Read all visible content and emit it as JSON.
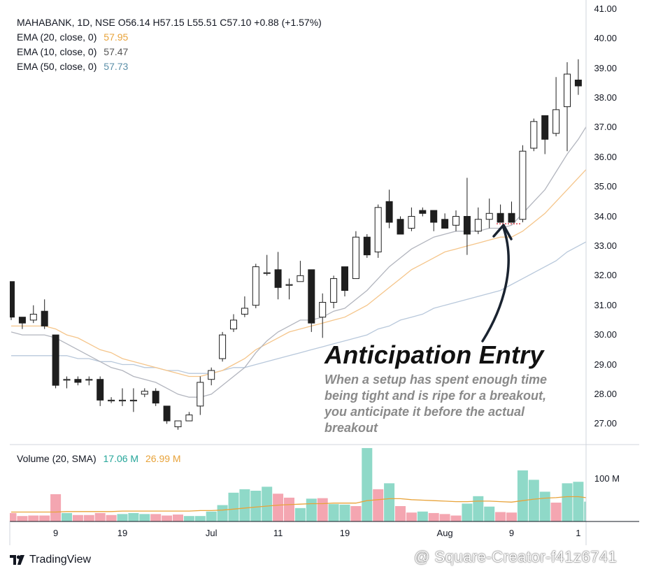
{
  "header": {
    "symbol_line": "MAHABANK, 1D, NSE  O56.14  H57.15  L55.51  C57.10  +0.88 (+1.57%)",
    "ema20_label": "EMA (20, close, 0)",
    "ema20_value": "57.95",
    "ema10_label": "EMA (10, close, 0)",
    "ema10_value": "57.47",
    "ema50_label": "EMA (50, close, 0)",
    "ema50_value": "57.73",
    "volume_label": "Volume (20, SMA)",
    "volume_value": "17.06 M",
    "volume_sma_value": "26.99 M",
    "volume_axis_tick": "100 M"
  },
  "colors": {
    "up": "#ffffff",
    "down": "#1e1e1e",
    "ema10": "#b2b5be",
    "ema20": "#f5c58a",
    "ema50": "#b8c8db",
    "vol_up": "#8fd9c8",
    "vol_down": "#f4a6b1",
    "vol_sma": "#e8a33a"
  },
  "annotation": {
    "title": "Anticipation Entry",
    "description": "When a setup has spent enough time being tight and is ripe for a breakout, you anticipate it before the actual breakout"
  },
  "footer": {
    "brand": "TradingView",
    "watermark": "@ Square-Creator-f41z6741"
  },
  "chart_data": {
    "type": "candlestick",
    "ylim": [
      26.3,
      41.3
    ],
    "y_ticks": [
      "27.00",
      "28.00",
      "29.00",
      "30.00",
      "31.00",
      "32.00",
      "33.00",
      "34.00",
      "35.00",
      "36.00",
      "37.00",
      "38.00",
      "39.00",
      "40.00",
      "41.00"
    ],
    "x_labels": [
      {
        "label": "9",
        "index": 4
      },
      {
        "label": "19",
        "index": 10
      },
      {
        "label": "Jul",
        "index": 18
      },
      {
        "label": "11",
        "index": 24
      },
      {
        "label": "19",
        "index": 30
      },
      {
        "label": "Aug",
        "index": 39
      },
      {
        "label": "9",
        "index": 45
      },
      {
        "label": "1",
        "index": 51
      }
    ],
    "candles": [
      {
        "o": 31.8,
        "h": 31.8,
        "l": 30.5,
        "c": 30.6
      },
      {
        "o": 30.6,
        "h": 30.6,
        "l": 30.2,
        "c": 30.4
      },
      {
        "o": 30.5,
        "h": 31.0,
        "l": 30.4,
        "c": 30.7
      },
      {
        "o": 30.8,
        "h": 31.2,
        "l": 30.2,
        "c": 30.3
      },
      {
        "o": 30.0,
        "h": 30.0,
        "l": 28.2,
        "c": 28.3
      },
      {
        "o": 28.5,
        "h": 28.6,
        "l": 28.2,
        "c": 28.5
      },
      {
        "o": 28.5,
        "h": 28.6,
        "l": 28.3,
        "c": 28.4
      },
      {
        "o": 28.5,
        "h": 28.6,
        "l": 28.3,
        "c": 28.5
      },
      {
        "o": 28.5,
        "h": 28.6,
        "l": 27.6,
        "c": 27.8
      },
      {
        "o": 27.8,
        "h": 27.9,
        "l": 27.7,
        "c": 27.8
      },
      {
        "o": 27.8,
        "h": 28.2,
        "l": 27.6,
        "c": 27.8
      },
      {
        "o": 27.8,
        "h": 28.2,
        "l": 27.4,
        "c": 27.8
      },
      {
        "o": 28.0,
        "h": 28.2,
        "l": 27.9,
        "c": 28.1
      },
      {
        "o": 28.1,
        "h": 28.2,
        "l": 27.6,
        "c": 27.7
      },
      {
        "o": 27.6,
        "h": 27.6,
        "l": 27.0,
        "c": 27.1
      },
      {
        "o": 26.9,
        "h": 27.0,
        "l": 26.8,
        "c": 27.1
      },
      {
        "o": 27.1,
        "h": 27.4,
        "l": 27.1,
        "c": 27.3
      },
      {
        "o": 27.6,
        "h": 28.6,
        "l": 27.3,
        "c": 28.4
      },
      {
        "o": 28.5,
        "h": 28.9,
        "l": 28.3,
        "c": 28.8
      },
      {
        "o": 29.2,
        "h": 30.1,
        "l": 29.1,
        "c": 30.0
      },
      {
        "o": 30.2,
        "h": 30.7,
        "l": 30.1,
        "c": 30.5
      },
      {
        "o": 30.7,
        "h": 31.3,
        "l": 30.6,
        "c": 30.9
      },
      {
        "o": 31.0,
        "h": 32.4,
        "l": 30.9,
        "c": 32.3
      },
      {
        "o": 32.1,
        "h": 32.7,
        "l": 32.0,
        "c": 32.1
      },
      {
        "o": 32.2,
        "h": 32.8,
        "l": 31.2,
        "c": 31.6
      },
      {
        "o": 31.7,
        "h": 31.9,
        "l": 31.2,
        "c": 31.7
      },
      {
        "o": 31.8,
        "h": 32.5,
        "l": 31.8,
        "c": 32.0
      },
      {
        "o": 32.2,
        "h": 32.2,
        "l": 30.1,
        "c": 30.4
      },
      {
        "o": 30.6,
        "h": 31.4,
        "l": 29.9,
        "c": 31.1
      },
      {
        "o": 31.1,
        "h": 32.0,
        "l": 30.9,
        "c": 31.9
      },
      {
        "o": 32.3,
        "h": 32.3,
        "l": 31.3,
        "c": 31.5
      },
      {
        "o": 31.9,
        "h": 33.5,
        "l": 31.9,
        "c": 33.3
      },
      {
        "o": 33.3,
        "h": 33.4,
        "l": 32.6,
        "c": 32.7
      },
      {
        "o": 32.8,
        "h": 34.4,
        "l": 32.6,
        "c": 34.3
      },
      {
        "o": 34.5,
        "h": 34.9,
        "l": 33.6,
        "c": 33.8
      },
      {
        "o": 33.9,
        "h": 34.0,
        "l": 33.4,
        "c": 33.4
      },
      {
        "o": 33.6,
        "h": 34.3,
        "l": 33.5,
        "c": 34.0
      },
      {
        "o": 34.2,
        "h": 34.3,
        "l": 34.0,
        "c": 34.1
      },
      {
        "o": 34.2,
        "h": 34.2,
        "l": 33.5,
        "c": 33.8
      },
      {
        "o": 33.9,
        "h": 34.1,
        "l": 33.6,
        "c": 33.6
      },
      {
        "o": 33.7,
        "h": 34.2,
        "l": 33.5,
        "c": 34.0
      },
      {
        "o": 34.0,
        "h": 35.3,
        "l": 32.7,
        "c": 33.4
      },
      {
        "o": 33.5,
        "h": 34.3,
        "l": 33.4,
        "c": 33.9
      },
      {
        "o": 33.9,
        "h": 34.6,
        "l": 33.6,
        "c": 34.1
      },
      {
        "o": 34.1,
        "h": 34.4,
        "l": 33.8,
        "c": 33.8
      },
      {
        "o": 34.1,
        "h": 34.5,
        "l": 33.8,
        "c": 33.8
      },
      {
        "o": 33.9,
        "h": 36.4,
        "l": 33.8,
        "c": 36.2
      },
      {
        "o": 36.3,
        "h": 37.3,
        "l": 36.2,
        "c": 37.2
      },
      {
        "o": 37.4,
        "h": 37.4,
        "l": 36.1,
        "c": 36.6
      },
      {
        "o": 36.8,
        "h": 38.7,
        "l": 36.7,
        "c": 37.6
      },
      {
        "o": 37.7,
        "h": 39.2,
        "l": 36.2,
        "c": 38.8
      },
      {
        "o": 38.6,
        "h": 39.3,
        "l": 38.1,
        "c": 38.4
      },
      {
        "o": 38.4,
        "h": 39.2,
        "l": 38.2,
        "c": 38.6
      }
    ],
    "ema10": [
      30.1,
      30.0,
      30.0,
      30.0,
      29.9,
      29.7,
      29.5,
      29.3,
      29.1,
      28.9,
      28.8,
      28.6,
      28.5,
      28.4,
      28.2,
      28.0,
      27.9,
      27.9,
      28.0,
      28.3,
      28.6,
      28.9,
      29.4,
      29.8,
      30.1,
      30.3,
      30.5,
      30.5,
      30.6,
      30.8,
      30.9,
      31.2,
      31.5,
      31.9,
      32.3,
      32.6,
      32.9,
      33.1,
      33.3,
      33.4,
      33.5,
      33.5,
      33.5,
      33.6,
      33.6,
      33.7,
      34.1,
      34.5,
      34.9,
      35.5,
      36.1,
      36.6,
      37.2
    ],
    "ema20": [
      30.3,
      30.3,
      30.3,
      30.3,
      30.2,
      30.0,
      29.9,
      29.7,
      29.5,
      29.4,
      29.2,
      29.1,
      29.0,
      28.9,
      28.8,
      28.7,
      28.6,
      28.6,
      28.7,
      28.8,
      29.0,
      29.2,
      29.5,
      29.7,
      29.9,
      30.1,
      30.2,
      30.3,
      30.4,
      30.5,
      30.6,
      30.8,
      31.0,
      31.3,
      31.6,
      31.9,
      32.2,
      32.4,
      32.6,
      32.8,
      32.9,
      33.0,
      33.1,
      33.2,
      33.3,
      33.3,
      33.5,
      33.8,
      34.1,
      34.5,
      34.9,
      35.3,
      35.7
    ],
    "ema50": [
      29.3,
      29.3,
      29.3,
      29.3,
      29.3,
      29.3,
      29.2,
      29.2,
      29.1,
      29.1,
      29.0,
      29.0,
      28.9,
      28.9,
      28.8,
      28.8,
      28.7,
      28.7,
      28.7,
      28.8,
      28.9,
      28.9,
      29.0,
      29.1,
      29.2,
      29.3,
      29.4,
      29.5,
      29.6,
      29.7,
      29.8,
      29.9,
      30.0,
      30.2,
      30.3,
      30.5,
      30.6,
      30.7,
      30.9,
      31.0,
      31.1,
      31.2,
      31.3,
      31.4,
      31.5,
      31.7,
      31.9,
      32.1,
      32.3,
      32.5,
      32.8,
      33.0,
      33.2
    ],
    "volume": {
      "ylim": [
        0,
        155
      ],
      "values": [
        17,
        11,
        12,
        12,
        55,
        17,
        13,
        13,
        17,
        13,
        15,
        17,
        15,
        15,
        12,
        14,
        11,
        11,
        20,
        33,
        58,
        65,
        62,
        70,
        56,
        48,
        27,
        46,
        47,
        35,
        34,
        31,
        148,
        65,
        77,
        31,
        18,
        20,
        17,
        15,
        12,
        36,
        51,
        30,
        19,
        18,
        103,
        84,
        60,
        38,
        77,
        80,
        40
      ],
      "up": [
        false,
        false,
        false,
        false,
        false,
        true,
        false,
        false,
        false,
        false,
        true,
        true,
        true,
        false,
        false,
        false,
        true,
        true,
        true,
        true,
        true,
        true,
        true,
        true,
        false,
        false,
        true,
        true,
        false,
        true,
        true,
        false,
        true,
        false,
        true,
        false,
        false,
        true,
        false,
        false,
        false,
        true,
        true,
        true,
        false,
        false,
        true,
        true,
        true,
        false,
        true,
        true,
        true
      ],
      "sma": [
        19,
        19,
        19,
        19,
        19,
        20,
        20,
        20,
        20,
        20,
        21,
        21,
        21,
        21,
        21,
        21,
        21,
        22,
        22,
        23,
        25,
        27,
        29,
        31,
        33,
        34,
        35,
        36,
        36,
        37,
        37,
        37,
        42,
        44,
        46,
        46,
        44,
        43,
        42,
        41,
        40,
        40,
        41,
        41,
        40,
        39,
        42,
        45,
        47,
        48,
        50,
        50,
        47
      ]
    }
  }
}
